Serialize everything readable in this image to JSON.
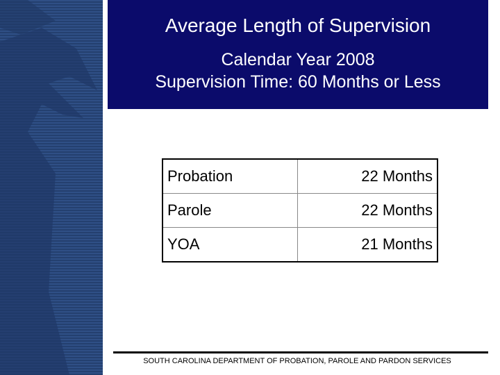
{
  "header": {
    "title": "Average Length of Supervision",
    "subtitle": [
      "Calendar Year 2008",
      "Supervision Time: 60 Months or Less"
    ]
  },
  "table": {
    "rows": [
      [
        "Probation",
        "22 Months"
      ],
      [
        "Parole",
        "22 Months"
      ],
      [
        "YOA",
        "21 Months"
      ]
    ]
  },
  "footer": "SOUTH CAROLINA DEPARTMENT OF PROBATION, PAROLE AND PARDON SERVICES"
}
